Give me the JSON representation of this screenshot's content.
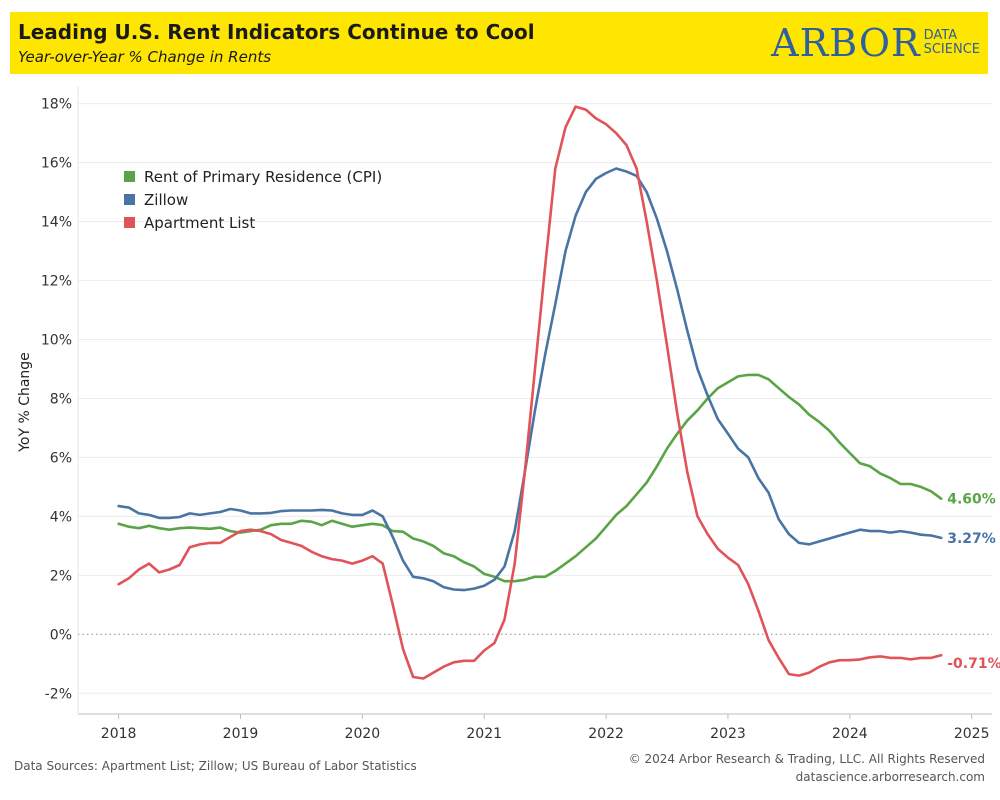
{
  "header": {
    "title": "Leading U.S. Rent Indicators Continue to Cool",
    "subtitle": "Year-over-Year % Change in Rents",
    "logo_main": "ARBOR",
    "logo_sub_1": "DATA",
    "logo_sub_2": "SCIENCE"
  },
  "footer": {
    "sources": "Data Sources: Apartment List; Zillow; US Bureau of Labor Statistics",
    "copyright": "© 2024 Arbor Research & Trading, LLC. All Rights Reserved",
    "website": "datascience.arborresearch.com"
  },
  "colors": {
    "cpi": "#5aa447",
    "zillow": "#4a74a4",
    "apartment_list": "#e05359",
    "brand": "#2e5f9e",
    "header_bg": "#ffe600"
  },
  "chart_data": {
    "type": "line",
    "title": "Leading U.S. Rent Indicators Continue to Cool",
    "subtitle": "Year-over-Year % Change in Rents",
    "xlabel": "",
    "ylabel": "YoY % Change",
    "xlim": [
      "2017-09",
      "2025-03"
    ],
    "ylim": [
      -2.5,
      18.6
    ],
    "x_ticks": [
      "2018",
      "2019",
      "2020",
      "2021",
      "2022",
      "2023",
      "2024",
      "2025"
    ],
    "y_ticks": [
      -2,
      0,
      2,
      4,
      6,
      8,
      10,
      12,
      14,
      16,
      18
    ],
    "y_tick_labels": [
      "-2%",
      "0%",
      "2%",
      "4%",
      "6%",
      "8%",
      "10%",
      "12%",
      "14%",
      "16%",
      "18%"
    ],
    "grid": "horizontal",
    "zero_line": "dotted",
    "legend_position": "top-left",
    "x": [
      "2018-01",
      "2018-02",
      "2018-03",
      "2018-04",
      "2018-05",
      "2018-06",
      "2018-07",
      "2018-08",
      "2018-09",
      "2018-10",
      "2018-11",
      "2018-12",
      "2019-01",
      "2019-02",
      "2019-03",
      "2019-04",
      "2019-05",
      "2019-06",
      "2019-07",
      "2019-08",
      "2019-09",
      "2019-10",
      "2019-11",
      "2019-12",
      "2020-01",
      "2020-02",
      "2020-03",
      "2020-04",
      "2020-05",
      "2020-06",
      "2020-07",
      "2020-08",
      "2020-09",
      "2020-10",
      "2020-11",
      "2020-12",
      "2021-01",
      "2021-02",
      "2021-03",
      "2021-04",
      "2021-05",
      "2021-06",
      "2021-07",
      "2021-08",
      "2021-09",
      "2021-10",
      "2021-11",
      "2021-12",
      "2022-01",
      "2022-02",
      "2022-03",
      "2022-04",
      "2022-05",
      "2022-06",
      "2022-07",
      "2022-08",
      "2022-09",
      "2022-10",
      "2022-11",
      "2022-12",
      "2023-01",
      "2023-02",
      "2023-03",
      "2023-04",
      "2023-05",
      "2023-06",
      "2023-07",
      "2023-08",
      "2023-09",
      "2023-10",
      "2023-11",
      "2023-12",
      "2024-01",
      "2024-02",
      "2024-03",
      "2024-04",
      "2024-05",
      "2024-06",
      "2024-07",
      "2024-08",
      "2024-09",
      "2024-10"
    ],
    "series": [
      {
        "name": "Rent of Primary Residence (CPI)",
        "color": "#5aa447",
        "end_label": "4.60%",
        "values": [
          3.75,
          3.65,
          3.6,
          3.68,
          3.6,
          3.55,
          3.6,
          3.62,
          3.6,
          3.58,
          3.62,
          3.5,
          3.45,
          3.5,
          3.55,
          3.7,
          3.75,
          3.75,
          3.85,
          3.82,
          3.7,
          3.85,
          3.75,
          3.65,
          3.7,
          3.75,
          3.7,
          3.5,
          3.48,
          3.25,
          3.15,
          3.0,
          2.75,
          2.65,
          2.45,
          2.3,
          2.05,
          1.95,
          1.8,
          1.8,
          1.85,
          1.95,
          1.95,
          2.15,
          2.4,
          2.65,
          2.95,
          3.25,
          3.65,
          4.05,
          4.35,
          4.75,
          5.15,
          5.7,
          6.3,
          6.8,
          7.25,
          7.6,
          8.0,
          8.35,
          8.55,
          8.75,
          8.8,
          8.8,
          8.65,
          8.35,
          8.05,
          7.8,
          7.45,
          7.2,
          6.9,
          6.5,
          6.15,
          5.8,
          5.7,
          5.45,
          5.3,
          5.1,
          5.1,
          5.0,
          4.85,
          4.6
        ]
      },
      {
        "name": "Zillow",
        "color": "#4a74a4",
        "end_label": "3.27%",
        "values": [
          4.35,
          4.3,
          4.1,
          4.05,
          3.95,
          3.95,
          3.98,
          4.1,
          4.05,
          4.1,
          4.15,
          4.25,
          4.2,
          4.1,
          4.1,
          4.12,
          4.18,
          4.2,
          4.2,
          4.2,
          4.22,
          4.2,
          4.1,
          4.05,
          4.05,
          4.2,
          4.0,
          3.3,
          2.5,
          1.95,
          1.9,
          1.8,
          1.6,
          1.52,
          1.5,
          1.55,
          1.65,
          1.85,
          2.3,
          3.5,
          5.5,
          7.6,
          9.5,
          11.2,
          13.0,
          14.2,
          15.0,
          15.45,
          15.65,
          15.8,
          15.7,
          15.55,
          15.0,
          14.1,
          13.0,
          11.7,
          10.3,
          9.0,
          8.1,
          7.3,
          6.8,
          6.3,
          6.0,
          5.3,
          4.8,
          3.9,
          3.4,
          3.1,
          3.05,
          3.15,
          3.25,
          3.35,
          3.45,
          3.55,
          3.5,
          3.5,
          3.45,
          3.5,
          3.45,
          3.38,
          3.35,
          3.27
        ]
      },
      {
        "name": "Apartment List",
        "color": "#e05359",
        "end_label": "-0.71%",
        "values": [
          1.7,
          1.9,
          2.2,
          2.4,
          2.1,
          2.2,
          2.35,
          2.95,
          3.05,
          3.1,
          3.1,
          3.3,
          3.5,
          3.55,
          3.5,
          3.4,
          3.2,
          3.1,
          3.0,
          2.8,
          2.65,
          2.55,
          2.5,
          2.4,
          2.5,
          2.65,
          2.4,
          1.0,
          -0.5,
          -1.45,
          -1.5,
          -1.3,
          -1.1,
          -0.95,
          -0.9,
          -0.9,
          -0.55,
          -0.3,
          0.5,
          2.4,
          5.5,
          9.0,
          12.5,
          15.8,
          17.2,
          17.9,
          17.8,
          17.5,
          17.3,
          17.0,
          16.6,
          15.8,
          14.0,
          12.0,
          9.8,
          7.5,
          5.5,
          4.0,
          3.4,
          2.9,
          2.6,
          2.35,
          1.7,
          0.8,
          -0.2,
          -0.8,
          -1.35,
          -1.4,
          -1.3,
          -1.1,
          -0.95,
          -0.88,
          -0.88,
          -0.85,
          -0.78,
          -0.75,
          -0.8,
          -0.8,
          -0.85,
          -0.8,
          -0.8,
          -0.71
        ]
      }
    ]
  }
}
